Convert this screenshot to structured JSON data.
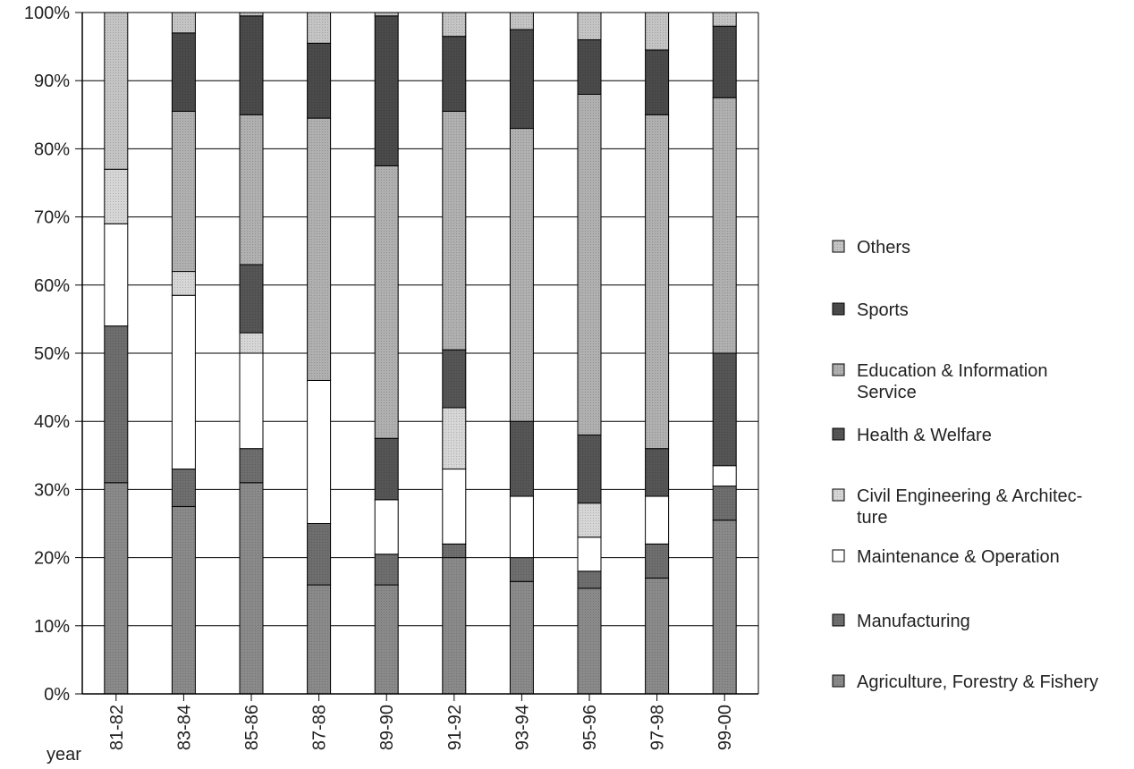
{
  "chart_data": {
    "type": "bar",
    "stacked": true,
    "percent_axis": true,
    "x_axis_label": "year",
    "categories": [
      "81-82",
      "83-84",
      "85-86",
      "87-88",
      "89-90",
      "91-92",
      "93-94",
      "95-96",
      "97-98",
      "99-00"
    ],
    "y_ticks": [
      "0%",
      "10%",
      "20%",
      "30%",
      "40%",
      "50%",
      "60%",
      "70%",
      "80%",
      "90%",
      "100%"
    ],
    "ylim": [
      0,
      100
    ],
    "grid": true,
    "legend_position": "right",
    "series": [
      {
        "name": "Agriculture, Forestry & Fishery",
        "color": "#8a8a8a",
        "values": [
          31,
          27.5,
          31,
          16,
          16,
          20,
          16.5,
          15.5,
          17,
          25.5
        ]
      },
      {
        "name": "Manufacturing",
        "color": "#6e6e6e",
        "values": [
          23,
          5.5,
          5,
          9,
          4.5,
          2,
          3.5,
          2.5,
          5,
          5
        ]
      },
      {
        "name": "Maintenance & Operation",
        "color": "#ffffff",
        "values": [
          15,
          25.5,
          14,
          21,
          8,
          11,
          9,
          5,
          7,
          3
        ]
      },
      {
        "name": "Civil Engineering & Architec-\nture",
        "color": "#d6d6d6",
        "values": [
          8,
          3.5,
          3,
          0,
          0,
          9,
          0,
          5,
          0,
          0
        ]
      },
      {
        "name": "Health & Welfare",
        "color": "#555555",
        "values": [
          0,
          0,
          10,
          0,
          9,
          8.5,
          11,
          10,
          7,
          16.5
        ]
      },
      {
        "name": "Education & Information\nService",
        "color": "#b0b0b0",
        "values": [
          0,
          23.5,
          22,
          38.5,
          40,
          35,
          43,
          50,
          49,
          37.5
        ]
      },
      {
        "name": "Sports",
        "color": "#4a4a4a",
        "values": [
          0,
          11.5,
          14.5,
          11,
          22,
          11,
          14.5,
          8,
          9.5,
          10.5
        ]
      },
      {
        "name": "Others",
        "color": "#c4c4c4",
        "values": [
          23,
          3,
          0.5,
          4.5,
          0.5,
          3.5,
          2.5,
          4,
          5.5,
          2
        ]
      }
    ]
  }
}
